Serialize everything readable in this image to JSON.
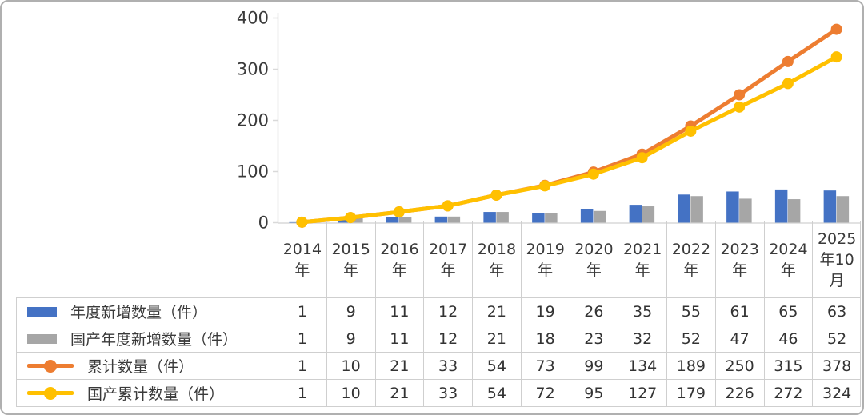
{
  "colors": {
    "bar_blue": "#4472C4",
    "bar_gray": "#A6A6A6",
    "line_orange": "#ED7D31",
    "line_yellow": "#FFC000",
    "axis": "#d9d9d9",
    "grid_border": "#cfcfcf",
    "text": "#3a3a3a"
  },
  "chart_data": {
    "type": "bar+line combo with data table",
    "title": "",
    "xlabel": "",
    "ylabel": "",
    "categories": [
      "2014年",
      "2015年",
      "2016年",
      "2017年",
      "2018年",
      "2019年",
      "2020年",
      "2021年",
      "2022年",
      "2023年",
      "2024年",
      "2025年10月"
    ],
    "series": [
      {
        "name": "年度新增数量（件）",
        "type": "bar",
        "color": "#4472C4",
        "values": [
          1,
          9,
          11,
          12,
          21,
          19,
          26,
          35,
          55,
          61,
          65,
          63
        ]
      },
      {
        "name": "国产年度新增数量（件）",
        "type": "bar",
        "color": "#A6A6A6",
        "values": [
          1,
          9,
          11,
          12,
          21,
          18,
          23,
          32,
          52,
          47,
          46,
          52
        ]
      },
      {
        "name": "累计数量（件）",
        "type": "line",
        "color": "#ED7D31",
        "values": [
          1,
          10,
          21,
          33,
          54,
          73,
          99,
          134,
          189,
          250,
          315,
          378
        ]
      },
      {
        "name": "国产累计数量（件）",
        "type": "line",
        "color": "#FFC000",
        "values": [
          1,
          10,
          21,
          33,
          54,
          72,
          95,
          127,
          179,
          226,
          272,
          324
        ]
      }
    ],
    "y_axis": {
      "min": 0,
      "max": 400,
      "tick_labels": [
        "0",
        "100",
        "200",
        "300",
        "400"
      ]
    },
    "grid": false,
    "legend_position": "data-table-left-column"
  }
}
